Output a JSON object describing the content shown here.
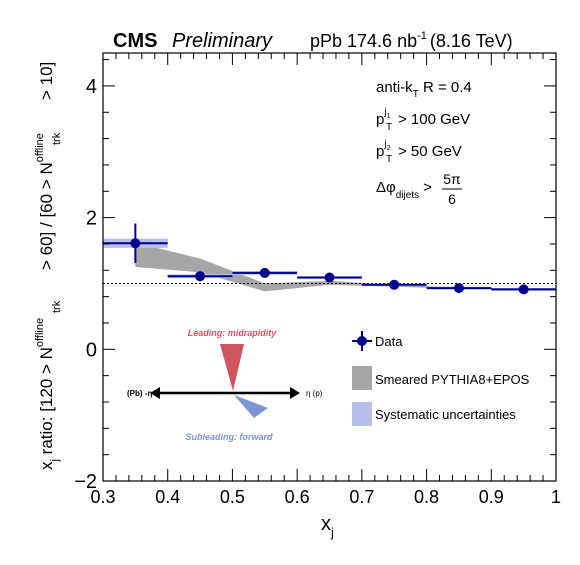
{
  "header": {
    "experiment": "CMS",
    "status": "Preliminary",
    "dataset": "pPb 174.6 nb",
    "lumi_exponent": "-1",
    "energy": "(8.16 TeV)"
  },
  "cuts": {
    "algo_prefix": "anti-k",
    "algo_sub": "T",
    "algo_suffix": " R = 0.4",
    "pt1_sup": "j",
    "pt1_supsub": "1",
    "pt1_cut": "> 100 GeV",
    "pt2_sup": "j",
    "pt2_supsub": "2",
    "pt2_cut": "> 50 GeV",
    "dphi_main": "Δφ",
    "dphi_sub": "dijets",
    "dphi_gt": ">",
    "dphi_num": "5π",
    "dphi_den": "6",
    "pt_letter": "p",
    "pt_sub": "T"
  },
  "inset": {
    "leading": "Leading: midrapidity",
    "subleading": "Subleading: forward",
    "left_label": "(Pb) -η",
    "right_label": "η (p)",
    "leading_color": "#cf5560",
    "subleading_color": "#7b96d4"
  },
  "legend": {
    "data": "Data",
    "model": "Smeared PYTHIA8+EPOS",
    "syst": "Systematic uncertainties"
  },
  "chart_data": {
    "type": "scatter",
    "title": "CMS Preliminary",
    "xlabel": "x_j",
    "ylabel_parts": {
      "a": "x",
      "a_sub": "j",
      "b": " ratio: [120 > N",
      "c_sup": "offline",
      "c_sub": "trk",
      "d": " > 60] / [60 > N",
      "e_sup": "offline",
      "e_sub": "trk",
      "f": " > 10]"
    },
    "xlim": [
      0.3,
      1.0
    ],
    "ylim": [
      -2,
      4.5
    ],
    "xticks": [
      "0.3",
      "0.4",
      "0.5",
      "0.6",
      "0.7",
      "0.8",
      "0.9",
      "1"
    ],
    "yticks": [
      "−2",
      "0",
      "2",
      "4"
    ],
    "reference_line": 1.0,
    "series": [
      {
        "name": "Data",
        "color": "#00008b",
        "x": [
          0.35,
          0.45,
          0.55,
          0.65,
          0.75,
          0.85,
          0.95
        ],
        "xerr": [
          0.05,
          0.05,
          0.05,
          0.05,
          0.05,
          0.05,
          0.05
        ],
        "y": [
          1.61,
          1.11,
          1.16,
          1.09,
          0.98,
          0.93,
          0.91
        ],
        "yerr": [
          0.3,
          0.06,
          0.04,
          0.03,
          0.03,
          0.02,
          0.02
        ],
        "syst": [
          0.07,
          0.03,
          0.03,
          0.02,
          0.02,
          0.02,
          0.02
        ],
        "syst_color": "#b9bfe8"
      },
      {
        "name": "Smeared PYTHIA8+EPOS",
        "color": "#a6a6a6",
        "x": [
          0.35,
          0.45,
          0.55,
          0.65,
          0.75,
          0.85,
          0.95
        ],
        "low": [
          1.25,
          1.17,
          0.88,
          0.98,
          0.95,
          0.92,
          0.9
        ],
        "high": [
          1.62,
          1.38,
          1.0,
          1.04,
          0.98,
          0.94,
          0.92
        ]
      }
    ]
  }
}
